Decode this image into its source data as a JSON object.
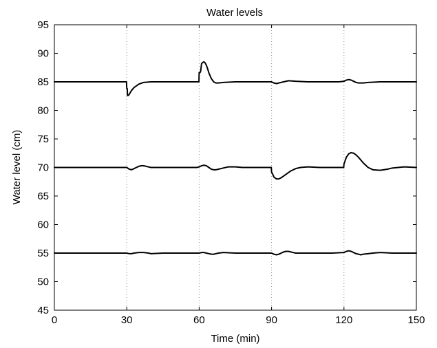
{
  "chart_data": {
    "type": "line",
    "title": "Water levels",
    "xlabel": "Time (min)",
    "ylabel": "Water level (cm)",
    "xlim": [
      0,
      150
    ],
    "ylim": [
      45,
      95
    ],
    "x_ticks": [
      "0",
      "30",
      "60",
      "90",
      "120",
      "150"
    ],
    "y_ticks": [
      "45",
      "50",
      "55",
      "60",
      "65",
      "70",
      "75",
      "80",
      "85",
      "90",
      "95"
    ],
    "grid": "vertical dotted lines at x = 30, 60, 90, 120",
    "line_color": "#000000",
    "series": [
      {
        "x": [
          0,
          29.9,
          30,
          30.2,
          30.3,
          30.6,
          31,
          32,
          33,
          35,
          37,
          40,
          45,
          50,
          55,
          59.9,
          60,
          60.3,
          60.6,
          60.8,
          61,
          61.5,
          62,
          62.5,
          63,
          63.5,
          64,
          65,
          66,
          67,
          68,
          70,
          75,
          80,
          85,
          88,
          90,
          91,
          92,
          93,
          95,
          97,
          100,
          105,
          110,
          115,
          118,
          120,
          121,
          122,
          123,
          124,
          125,
          126,
          128,
          130,
          135,
          140,
          145,
          150
        ],
        "y": [
          85,
          85,
          83.8,
          83.8,
          82.6,
          82.6,
          82.8,
          83.5,
          84,
          84.6,
          84.9,
          85,
          85,
          85,
          85,
          85,
          86.6,
          86.6,
          86.8,
          87.5,
          88.2,
          88.4,
          88.5,
          88.3,
          87.9,
          87.3,
          86.6,
          85.6,
          85,
          84.8,
          84.8,
          84.9,
          85,
          85,
          85,
          85,
          85,
          84.8,
          84.7,
          84.8,
          85,
          85.2,
          85.1,
          85,
          85,
          85,
          85,
          85.1,
          85.3,
          85.4,
          85.3,
          85.1,
          84.9,
          84.8,
          84.8,
          84.9,
          85,
          85,
          85,
          85
        ]
      },
      {
        "x": [
          0,
          10,
          20,
          29,
          30,
          31,
          32,
          33,
          34,
          35,
          36,
          37,
          38,
          39,
          40,
          42,
          45,
          50,
          55,
          59,
          60,
          61,
          62,
          63,
          64,
          65,
          66,
          67,
          68,
          70,
          72,
          75,
          78,
          80,
          85,
          89.9,
          90,
          90.5,
          91,
          92,
          93,
          94,
          95,
          96,
          97,
          98,
          100,
          102,
          105,
          110,
          115,
          119.9,
          120,
          120.5,
          121,
          122,
          123,
          124,
          125,
          126,
          127,
          128,
          130,
          132,
          135,
          138,
          140,
          145,
          150
        ],
        "y": [
          70,
          70,
          70,
          70,
          70,
          69.7,
          69.6,
          69.8,
          70,
          70.2,
          70.3,
          70.3,
          70.2,
          70.1,
          70,
          70,
          70,
          70,
          70,
          70,
          70.1,
          70.3,
          70.4,
          70.3,
          70,
          69.7,
          69.6,
          69.6,
          69.7,
          69.9,
          70.1,
          70.1,
          70,
          70,
          70,
          70,
          69.2,
          68.8,
          68.3,
          68,
          68,
          68.2,
          68.5,
          68.8,
          69.1,
          69.4,
          69.8,
          70,
          70.1,
          70,
          70,
          70,
          70.6,
          71.2,
          71.8,
          72.4,
          72.6,
          72.5,
          72.2,
          71.8,
          71.3,
          70.8,
          70,
          69.6,
          69.5,
          69.7,
          69.9,
          70.1,
          70
        ]
      },
      {
        "x": [
          0,
          10,
          20,
          30,
          31,
          32,
          33,
          35,
          37,
          39,
          40,
          45,
          50,
          55,
          60,
          61,
          62,
          63,
          64,
          65,
          66,
          67,
          68,
          70,
          75,
          80,
          85,
          90,
          91,
          92,
          93,
          94,
          95,
          96,
          97,
          98,
          99,
          100,
          105,
          110,
          115,
          120,
          121,
          122,
          123,
          124,
          125,
          126,
          127,
          128,
          130,
          132,
          135,
          140,
          145,
          150
        ],
        "y": [
          55,
          55,
          55,
          55,
          54.9,
          54.9,
          55,
          55.1,
          55.1,
          55,
          54.9,
          55,
          55,
          55,
          55,
          55.1,
          55.1,
          55,
          54.9,
          54.8,
          54.8,
          54.9,
          55,
          55.1,
          55,
          55,
          55,
          55,
          54.8,
          54.7,
          54.8,
          55,
          55.2,
          55.3,
          55.3,
          55.2,
          55.1,
          55,
          55,
          55,
          55,
          55.1,
          55.3,
          55.4,
          55.3,
          55.1,
          54.9,
          54.8,
          54.7,
          54.8,
          54.9,
          55,
          55.1,
          55,
          55,
          55
        ]
      }
    ]
  }
}
